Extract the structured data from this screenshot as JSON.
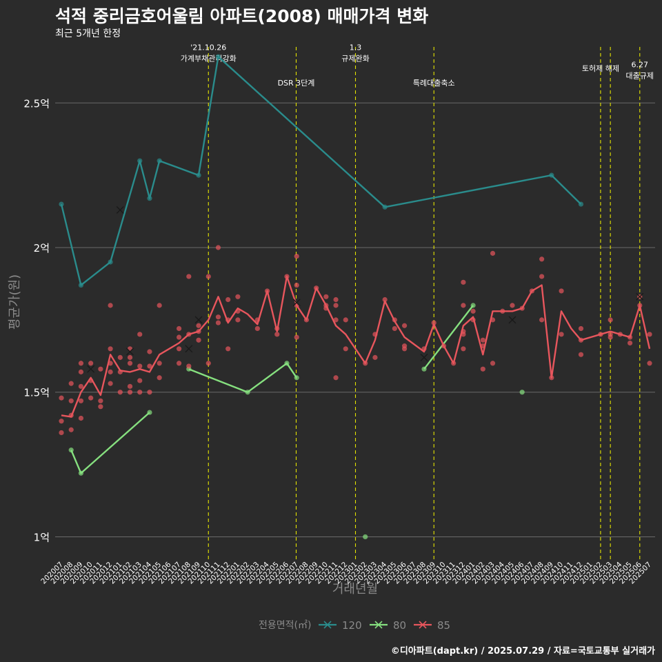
{
  "title": "석적 중리금호어울림 아파트(2008) 매매가격 변화",
  "subtitle": "최근 5개년 한정",
  "caption": "©디아파트(dapt.kr) / 2025.07.29 / 자료=국토교통부 실거래가",
  "colors": {
    "background": "#2b2b2b",
    "grid": "#6a6a6a",
    "event_line": "#e6e600",
    "axis_title": "#8a8a8a",
    "s120": "#2a8c8c",
    "s80": "#86e07f",
    "s85": "#e8565d"
  },
  "chart_data": {
    "type": "line",
    "xlabel": "거래년월",
    "ylabel": "평균가(원)",
    "ylim": [
      0.92,
      2.72
    ],
    "y_ticks": [
      {
        "value": 1.0,
        "label": "1억"
      },
      {
        "value": 1.5,
        "label": "1.5억"
      },
      {
        "value": 2.0,
        "label": "2억"
      },
      {
        "value": 2.5,
        "label": "2.5억"
      }
    ],
    "categories": [
      "202007",
      "202008",
      "202009",
      "202010",
      "202011",
      "202012",
      "202101",
      "202102",
      "202103",
      "202104",
      "202105",
      "202106",
      "202107",
      "202108",
      "202109",
      "202110",
      "202111",
      "202112",
      "202201",
      "202202",
      "202203",
      "202204",
      "202205",
      "202206",
      "202207",
      "202208",
      "202209",
      "202210",
      "202211",
      "202212",
      "202301",
      "202302",
      "202303",
      "202304",
      "202305",
      "202306",
      "202307",
      "202308",
      "202309",
      "202310",
      "202311",
      "202312",
      "202401",
      "202402",
      "202403",
      "202404",
      "202405",
      "202406",
      "202407",
      "202408",
      "202409",
      "202410",
      "202411",
      "202412",
      "202501",
      "202502",
      "202503",
      "202504",
      "202505",
      "202506",
      "202507"
    ],
    "events": [
      {
        "x": 15.0,
        "lines": [
          "'21.10.26",
          "가계부채관리강화"
        ],
        "label_y": 2.645
      },
      {
        "x": 23.95,
        "lines": [
          "DSR 3단계"
        ],
        "label_y": 2.56
      },
      {
        "x": 30.0,
        "lines": [
          "1.3",
          "규제완화"
        ],
        "label_y": 2.645
      },
      {
        "x": 38.0,
        "lines": [
          "특례대출축소"
        ],
        "label_y": 2.56
      },
      {
        "x": 55.0,
        "lines": [
          "토허제 해제"
        ],
        "label_y": 2.61
      },
      {
        "x": 56.0,
        "lines": [],
        "label_y": 2.61
      },
      {
        "x": 59.0,
        "lines": [
          "6.27",
          "대출규제"
        ],
        "label_y": 2.585
      }
    ],
    "legend": {
      "title": "전용면적(㎡)",
      "position": "bottom",
      "entries": [
        "120",
        "80",
        "85"
      ]
    },
    "series": [
      {
        "name": "120",
        "color_key": "s120",
        "line": [
          [
            0,
            2.15
          ],
          [
            2,
            1.87
          ],
          [
            5,
            1.95
          ],
          [
            8,
            2.3
          ],
          [
            9,
            2.17
          ],
          [
            10,
            2.3
          ],
          [
            14,
            2.25
          ],
          [
            16,
            2.66
          ],
          [
            33,
            2.14
          ],
          [
            50,
            2.25
          ],
          [
            53,
            2.15
          ]
        ],
        "points": [
          [
            0,
            2.15
          ],
          [
            2,
            1.87
          ],
          [
            5,
            1.95
          ],
          [
            8,
            2.3
          ],
          [
            9,
            2.17
          ],
          [
            10,
            2.3
          ],
          [
            14,
            2.25
          ],
          [
            16,
            2.66
          ],
          [
            33,
            2.14
          ],
          [
            50,
            2.25
          ],
          [
            53,
            2.15
          ]
        ],
        "cancelled": []
      },
      {
        "name": "80",
        "color_key": "s80",
        "line_segments": [
          [
            [
              1,
              1.3
            ],
            [
              2,
              1.22
            ],
            [
              9,
              1.43
            ]
          ],
          [
            [
              13,
              1.58
            ],
            [
              19,
              1.5
            ],
            [
              23,
              1.6
            ],
            [
              24,
              1.55
            ]
          ],
          [
            [
              37,
              1.58
            ],
            [
              42,
              1.8
            ]
          ]
        ],
        "points": [
          [
            1,
            1.3
          ],
          [
            2,
            1.22
          ],
          [
            9,
            1.43
          ],
          [
            13,
            1.58
          ],
          [
            19,
            1.5
          ],
          [
            23,
            1.6
          ],
          [
            24,
            1.55
          ],
          [
            31,
            1.0
          ],
          [
            37,
            1.58
          ],
          [
            42,
            1.8
          ],
          [
            47,
            1.5
          ]
        ],
        "cancelled": []
      },
      {
        "name": "85",
        "color_key": "s85",
        "line": [
          [
            0,
            1.42
          ],
          [
            1,
            1.415
          ],
          [
            2,
            1.5
          ],
          [
            3,
            1.55
          ],
          [
            4,
            1.49
          ],
          [
            5,
            1.63
          ],
          [
            6,
            1.575
          ],
          [
            7,
            1.57
          ],
          [
            8,
            1.58
          ],
          [
            9,
            1.57
          ],
          [
            10,
            1.63
          ],
          [
            11,
            1.65
          ],
          [
            12,
            1.67
          ],
          [
            13,
            1.7
          ],
          [
            14,
            1.71
          ],
          [
            15,
            1.75
          ],
          [
            16,
            1.83
          ],
          [
            17,
            1.74
          ],
          [
            18,
            1.79
          ],
          [
            19,
            1.77
          ],
          [
            20,
            1.735
          ],
          [
            21,
            1.85
          ],
          [
            22,
            1.71
          ],
          [
            23,
            1.9
          ],
          [
            24,
            1.8
          ],
          [
            25,
            1.75
          ],
          [
            26,
            1.86
          ],
          [
            27,
            1.8
          ],
          [
            28,
            1.73
          ],
          [
            29,
            1.7
          ],
          [
            30,
            1.65
          ],
          [
            31,
            1.6
          ],
          [
            32,
            1.68
          ],
          [
            33,
            1.815
          ],
          [
            34,
            1.745
          ],
          [
            35,
            1.69
          ],
          [
            36,
            1.665
          ],
          [
            37,
            1.64
          ],
          [
            38,
            1.735
          ],
          [
            39,
            1.66
          ],
          [
            40,
            1.6
          ],
          [
            41,
            1.73
          ],
          [
            42,
            1.76
          ],
          [
            43,
            1.63
          ],
          [
            44,
            1.78
          ],
          [
            45,
            1.78
          ],
          [
            46,
            1.78
          ],
          [
            47,
            1.79
          ],
          [
            48,
            1.85
          ],
          [
            49,
            1.87
          ],
          [
            50,
            1.55
          ],
          [
            51,
            1.78
          ],
          [
            52,
            1.72
          ],
          [
            53,
            1.68
          ],
          [
            54,
            1.69
          ],
          [
            55,
            1.7
          ],
          [
            56,
            1.71
          ],
          [
            57,
            1.7
          ],
          [
            58,
            1.69
          ],
          [
            59,
            1.8
          ],
          [
            60,
            1.65
          ]
        ],
        "points": [
          [
            0,
            1.48
          ],
          [
            0,
            1.4
          ],
          [
            0,
            1.36
          ],
          [
            1,
            1.53
          ],
          [
            1,
            1.47
          ],
          [
            1,
            1.42
          ],
          [
            1,
            1.37
          ],
          [
            2,
            1.6
          ],
          [
            2,
            1.57
          ],
          [
            2,
            1.52
          ],
          [
            2,
            1.47
          ],
          [
            2,
            1.41
          ],
          [
            3,
            1.6
          ],
          [
            3,
            1.54
          ],
          [
            3,
            1.48
          ],
          [
            4,
            1.58
          ],
          [
            4,
            1.47
          ],
          [
            4,
            1.45
          ],
          [
            5,
            1.8
          ],
          [
            5,
            1.65
          ],
          [
            5,
            1.6
          ],
          [
            5,
            1.57
          ],
          [
            5,
            1.53
          ],
          [
            6,
            1.62
          ],
          [
            6,
            1.57
          ],
          [
            6,
            1.5
          ],
          [
            7,
            1.65
          ],
          [
            7,
            1.62
          ],
          [
            7,
            1.6
          ],
          [
            7,
            1.52
          ],
          [
            7,
            1.5
          ],
          [
            8,
            1.7
          ],
          [
            8,
            1.59
          ],
          [
            8,
            1.54
          ],
          [
            8,
            1.5
          ],
          [
            9,
            1.64
          ],
          [
            9,
            1.59
          ],
          [
            9,
            1.5
          ],
          [
            10,
            1.8
          ],
          [
            10,
            1.6
          ],
          [
            10,
            1.55
          ],
          [
            12,
            1.72
          ],
          [
            12,
            1.69
          ],
          [
            12,
            1.65
          ],
          [
            12,
            1.6
          ],
          [
            13,
            1.9
          ],
          [
            13,
            1.7
          ],
          [
            13,
            1.59
          ],
          [
            14,
            1.73
          ],
          [
            14,
            1.71
          ],
          [
            14,
            1.68
          ],
          [
            15,
            1.9
          ],
          [
            15,
            1.6
          ],
          [
            16,
            2.0
          ],
          [
            16,
            1.76
          ],
          [
            16,
            1.74
          ],
          [
            17,
            1.82
          ],
          [
            17,
            1.75
          ],
          [
            17,
            1.65
          ],
          [
            18,
            1.83
          ],
          [
            18,
            1.78
          ],
          [
            18,
            1.75
          ],
          [
            20,
            1.75
          ],
          [
            20,
            1.72
          ],
          [
            21,
            1.85
          ],
          [
            22,
            1.72
          ],
          [
            22,
            1.7
          ],
          [
            23,
            1.9
          ],
          [
            24,
            1.97
          ],
          [
            24,
            1.87
          ],
          [
            24,
            1.8
          ],
          [
            24,
            1.69
          ],
          [
            25,
            1.75
          ],
          [
            26,
            1.86
          ],
          [
            27,
            1.83
          ],
          [
            27,
            1.8
          ],
          [
            27,
            1.79
          ],
          [
            28,
            1.82
          ],
          [
            28,
            1.8
          ],
          [
            28,
            1.75
          ],
          [
            28,
            1.55
          ],
          [
            29,
            1.75
          ],
          [
            29,
            1.65
          ],
          [
            31,
            1.6
          ],
          [
            32,
            1.7
          ],
          [
            32,
            1.62
          ],
          [
            33,
            1.82
          ],
          [
            34,
            1.75
          ],
          [
            34,
            1.72
          ],
          [
            35,
            1.73
          ],
          [
            35,
            1.66
          ],
          [
            35,
            1.65
          ],
          [
            37,
            1.65
          ],
          [
            38,
            1.74
          ],
          [
            39,
            1.66
          ],
          [
            40,
            1.6
          ],
          [
            41,
            1.88
          ],
          [
            41,
            1.8
          ],
          [
            41,
            1.71
          ],
          [
            41,
            1.7
          ],
          [
            41,
            1.65
          ],
          [
            42,
            1.78
          ],
          [
            42,
            1.75
          ],
          [
            43,
            1.68
          ],
          [
            43,
            1.66
          ],
          [
            43,
            1.58
          ],
          [
            44,
            1.98
          ],
          [
            44,
            1.75
          ],
          [
            44,
            1.6
          ],
          [
            45,
            1.78
          ],
          [
            46,
            1.8
          ],
          [
            47,
            1.79
          ],
          [
            48,
            1.85
          ],
          [
            49,
            1.96
          ],
          [
            49,
            1.9
          ],
          [
            49,
            1.75
          ],
          [
            50,
            1.55
          ],
          [
            51,
            1.85
          ],
          [
            51,
            1.7
          ],
          [
            53,
            1.72
          ],
          [
            53,
            1.68
          ],
          [
            53,
            1.63
          ],
          [
            55,
            1.7
          ],
          [
            56,
            1.75
          ],
          [
            56,
            1.7
          ],
          [
            56,
            1.69
          ],
          [
            57,
            1.7
          ],
          [
            58,
            1.69
          ],
          [
            58,
            1.67
          ],
          [
            59,
            1.83
          ],
          [
            59,
            1.8
          ],
          [
            60,
            1.7
          ],
          [
            60,
            1.6
          ]
        ],
        "cancelled": [
          [
            3,
            1.58
          ],
          [
            6,
            2.13
          ],
          [
            7,
            1.64
          ],
          [
            13,
            1.65
          ],
          [
            14,
            1.75
          ],
          [
            24,
            1.81
          ],
          [
            37,
            1.62
          ],
          [
            46,
            1.75
          ],
          [
            59,
            1.83
          ]
        ]
      }
    ]
  }
}
